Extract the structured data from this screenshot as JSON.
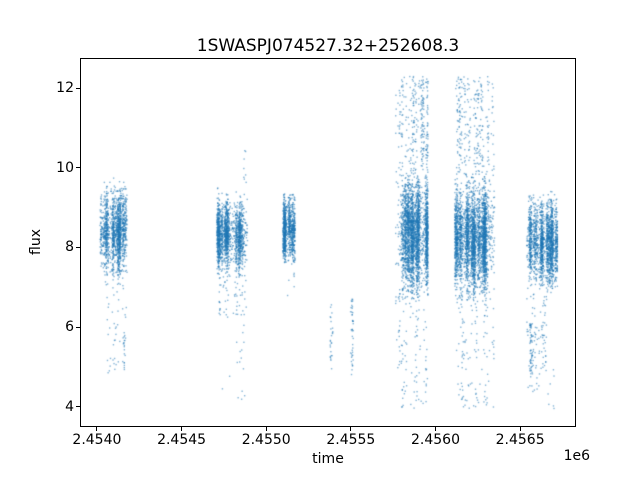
{
  "chart_data": {
    "type": "scatter",
    "title": "1SWASPJ074527.32+252608.3",
    "xlabel": "time",
    "ylabel": "flux",
    "offset_text": "1e6",
    "grid": false,
    "legend": null,
    "point_color": "#1f77b4",
    "point_alpha": 0.55,
    "marker_px": 1.4,
    "seed": 42,
    "xlim": [
      2453900,
      2456830
    ],
    "ylim": [
      3.49,
      12.76
    ],
    "x_ticks": [
      {
        "value": 2454000,
        "label": "2.4540"
      },
      {
        "value": 2454500,
        "label": "2.4545"
      },
      {
        "value": 2455000,
        "label": "2.4550"
      },
      {
        "value": 2455500,
        "label": "2.4555"
      },
      {
        "value": 2456000,
        "label": "2.4560"
      },
      {
        "value": 2456500,
        "label": "2.4565"
      }
    ],
    "y_ticks": [
      {
        "value": 4,
        "label": "4"
      },
      {
        "value": 6,
        "label": "6"
      },
      {
        "value": 8,
        "label": "8"
      },
      {
        "value": 10,
        "label": "10"
      },
      {
        "value": 12,
        "label": "12"
      }
    ],
    "clusters": [
      {
        "name": "season1-core",
        "x0": 2454018,
        "x1": 2454178,
        "n": 1500,
        "stripes": 15,
        "dist": "gauss",
        "mean": 8.45,
        "sd": 0.48,
        "fmin": 6.95,
        "fmax": 9.8
      },
      {
        "name": "season1-low",
        "x0": 2454060,
        "x1": 2454178,
        "n": 45,
        "stripes": 7,
        "dist": "uniform",
        "fmin": 4.85,
        "fmax": 7.1
      },
      {
        "name": "season1-lowstripe",
        "x0": 2454150,
        "x1": 2454162,
        "n": 14,
        "stripes": 1,
        "dist": "uniform",
        "fmin": 5.1,
        "fmax": 5.9
      },
      {
        "name": "season2-core",
        "x0": 2454710,
        "x1": 2454890,
        "n": 1700,
        "stripes": 15,
        "dist": "gauss",
        "mean": 8.3,
        "sd": 0.4,
        "fmin": 7.25,
        "fmax": 9.5
      },
      {
        "name": "season2-low",
        "x0": 2454715,
        "x1": 2454890,
        "n": 55,
        "stripes": 9,
        "dist": "uniform",
        "fmin": 6.25,
        "fmax": 7.3
      },
      {
        "name": "season2-deep",
        "x0": 2454740,
        "x1": 2454880,
        "n": 16,
        "stripes": 6,
        "dist": "uniform",
        "fmin": 4.1,
        "fmax": 6.2
      },
      {
        "name": "season2-high",
        "x0": 2454868,
        "x1": 2454892,
        "n": 8,
        "stripes": 2,
        "dist": "uniform",
        "fmin": 9.6,
        "fmax": 10.55
      },
      {
        "name": "season3-core",
        "x0": 2455100,
        "x1": 2455170,
        "n": 950,
        "stripes": 7,
        "dist": "gauss",
        "mean": 8.45,
        "sd": 0.4,
        "fmin": 7.6,
        "fmax": 9.35
      },
      {
        "name": "season3-low",
        "x0": 2455105,
        "x1": 2455165,
        "n": 7,
        "stripes": 3,
        "dist": "uniform",
        "fmin": 6.6,
        "fmax": 7.6
      },
      {
        "name": "gap-low-streak-1",
        "x0": 2455378,
        "x1": 2455394,
        "n": 26,
        "stripes": 2,
        "dist": "uniform",
        "fmin": 4.95,
        "fmax": 6.6
      },
      {
        "name": "gap-low-streak-2",
        "x0": 2455498,
        "x1": 2455514,
        "n": 42,
        "stripes": 2,
        "dist": "uniform",
        "fmin": 4.8,
        "fmax": 6.7
      },
      {
        "name": "season4-left-sparse",
        "x0": 2455765,
        "x1": 2455790,
        "n": 70,
        "stripes": 2,
        "dist": "uniform",
        "fmin": 4.9,
        "fmax": 12.0
      },
      {
        "name": "season4-core",
        "x0": 2455795,
        "x1": 2455955,
        "n": 2600,
        "stripes": 12,
        "dist": "gauss",
        "mean": 8.3,
        "sd": 0.68,
        "fmin": 6.7,
        "fmax": 9.9
      },
      {
        "name": "season4-top",
        "x0": 2455795,
        "x1": 2455955,
        "n": 260,
        "stripes": 12,
        "dist": "uniform",
        "fmin": 9.9,
        "fmax": 12.3
      },
      {
        "name": "season4-bottom",
        "x0": 2455795,
        "x1": 2455955,
        "n": 80,
        "stripes": 12,
        "dist": "uniform",
        "fmin": 3.95,
        "fmax": 6.7
      },
      {
        "name": "season5-core",
        "x0": 2456115,
        "x1": 2456350,
        "n": 3100,
        "stripes": 16,
        "dist": "gauss",
        "mean": 8.25,
        "sd": 0.62,
        "fmin": 6.6,
        "fmax": 9.8
      },
      {
        "name": "season5-top",
        "x0": 2456120,
        "x1": 2456345,
        "n": 270,
        "stripes": 16,
        "dist": "uniform",
        "fmin": 9.8,
        "fmax": 12.3
      },
      {
        "name": "season5-bottom",
        "x0": 2456120,
        "x1": 2456345,
        "n": 110,
        "stripes": 16,
        "dist": "uniform",
        "fmin": 3.95,
        "fmax": 6.6
      },
      {
        "name": "season6-core",
        "x0": 2456540,
        "x1": 2456720,
        "n": 1900,
        "stripes": 13,
        "dist": "gauss",
        "mean": 8.1,
        "sd": 0.5,
        "fmin": 6.85,
        "fmax": 9.45
      },
      {
        "name": "season6-low",
        "x0": 2456540,
        "x1": 2456660,
        "n": 80,
        "stripes": 6,
        "dist": "uniform",
        "fmin": 4.9,
        "fmax": 6.85
      },
      {
        "name": "season6-deepstripe",
        "x0": 2456558,
        "x1": 2456572,
        "n": 55,
        "stripes": 1,
        "dist": "uniform",
        "fmin": 4.85,
        "fmax": 6.1
      },
      {
        "name": "season6-deep",
        "x0": 2456545,
        "x1": 2456700,
        "n": 20,
        "stripes": 8,
        "dist": "uniform",
        "fmin": 3.95,
        "fmax": 4.95
      }
    ]
  }
}
